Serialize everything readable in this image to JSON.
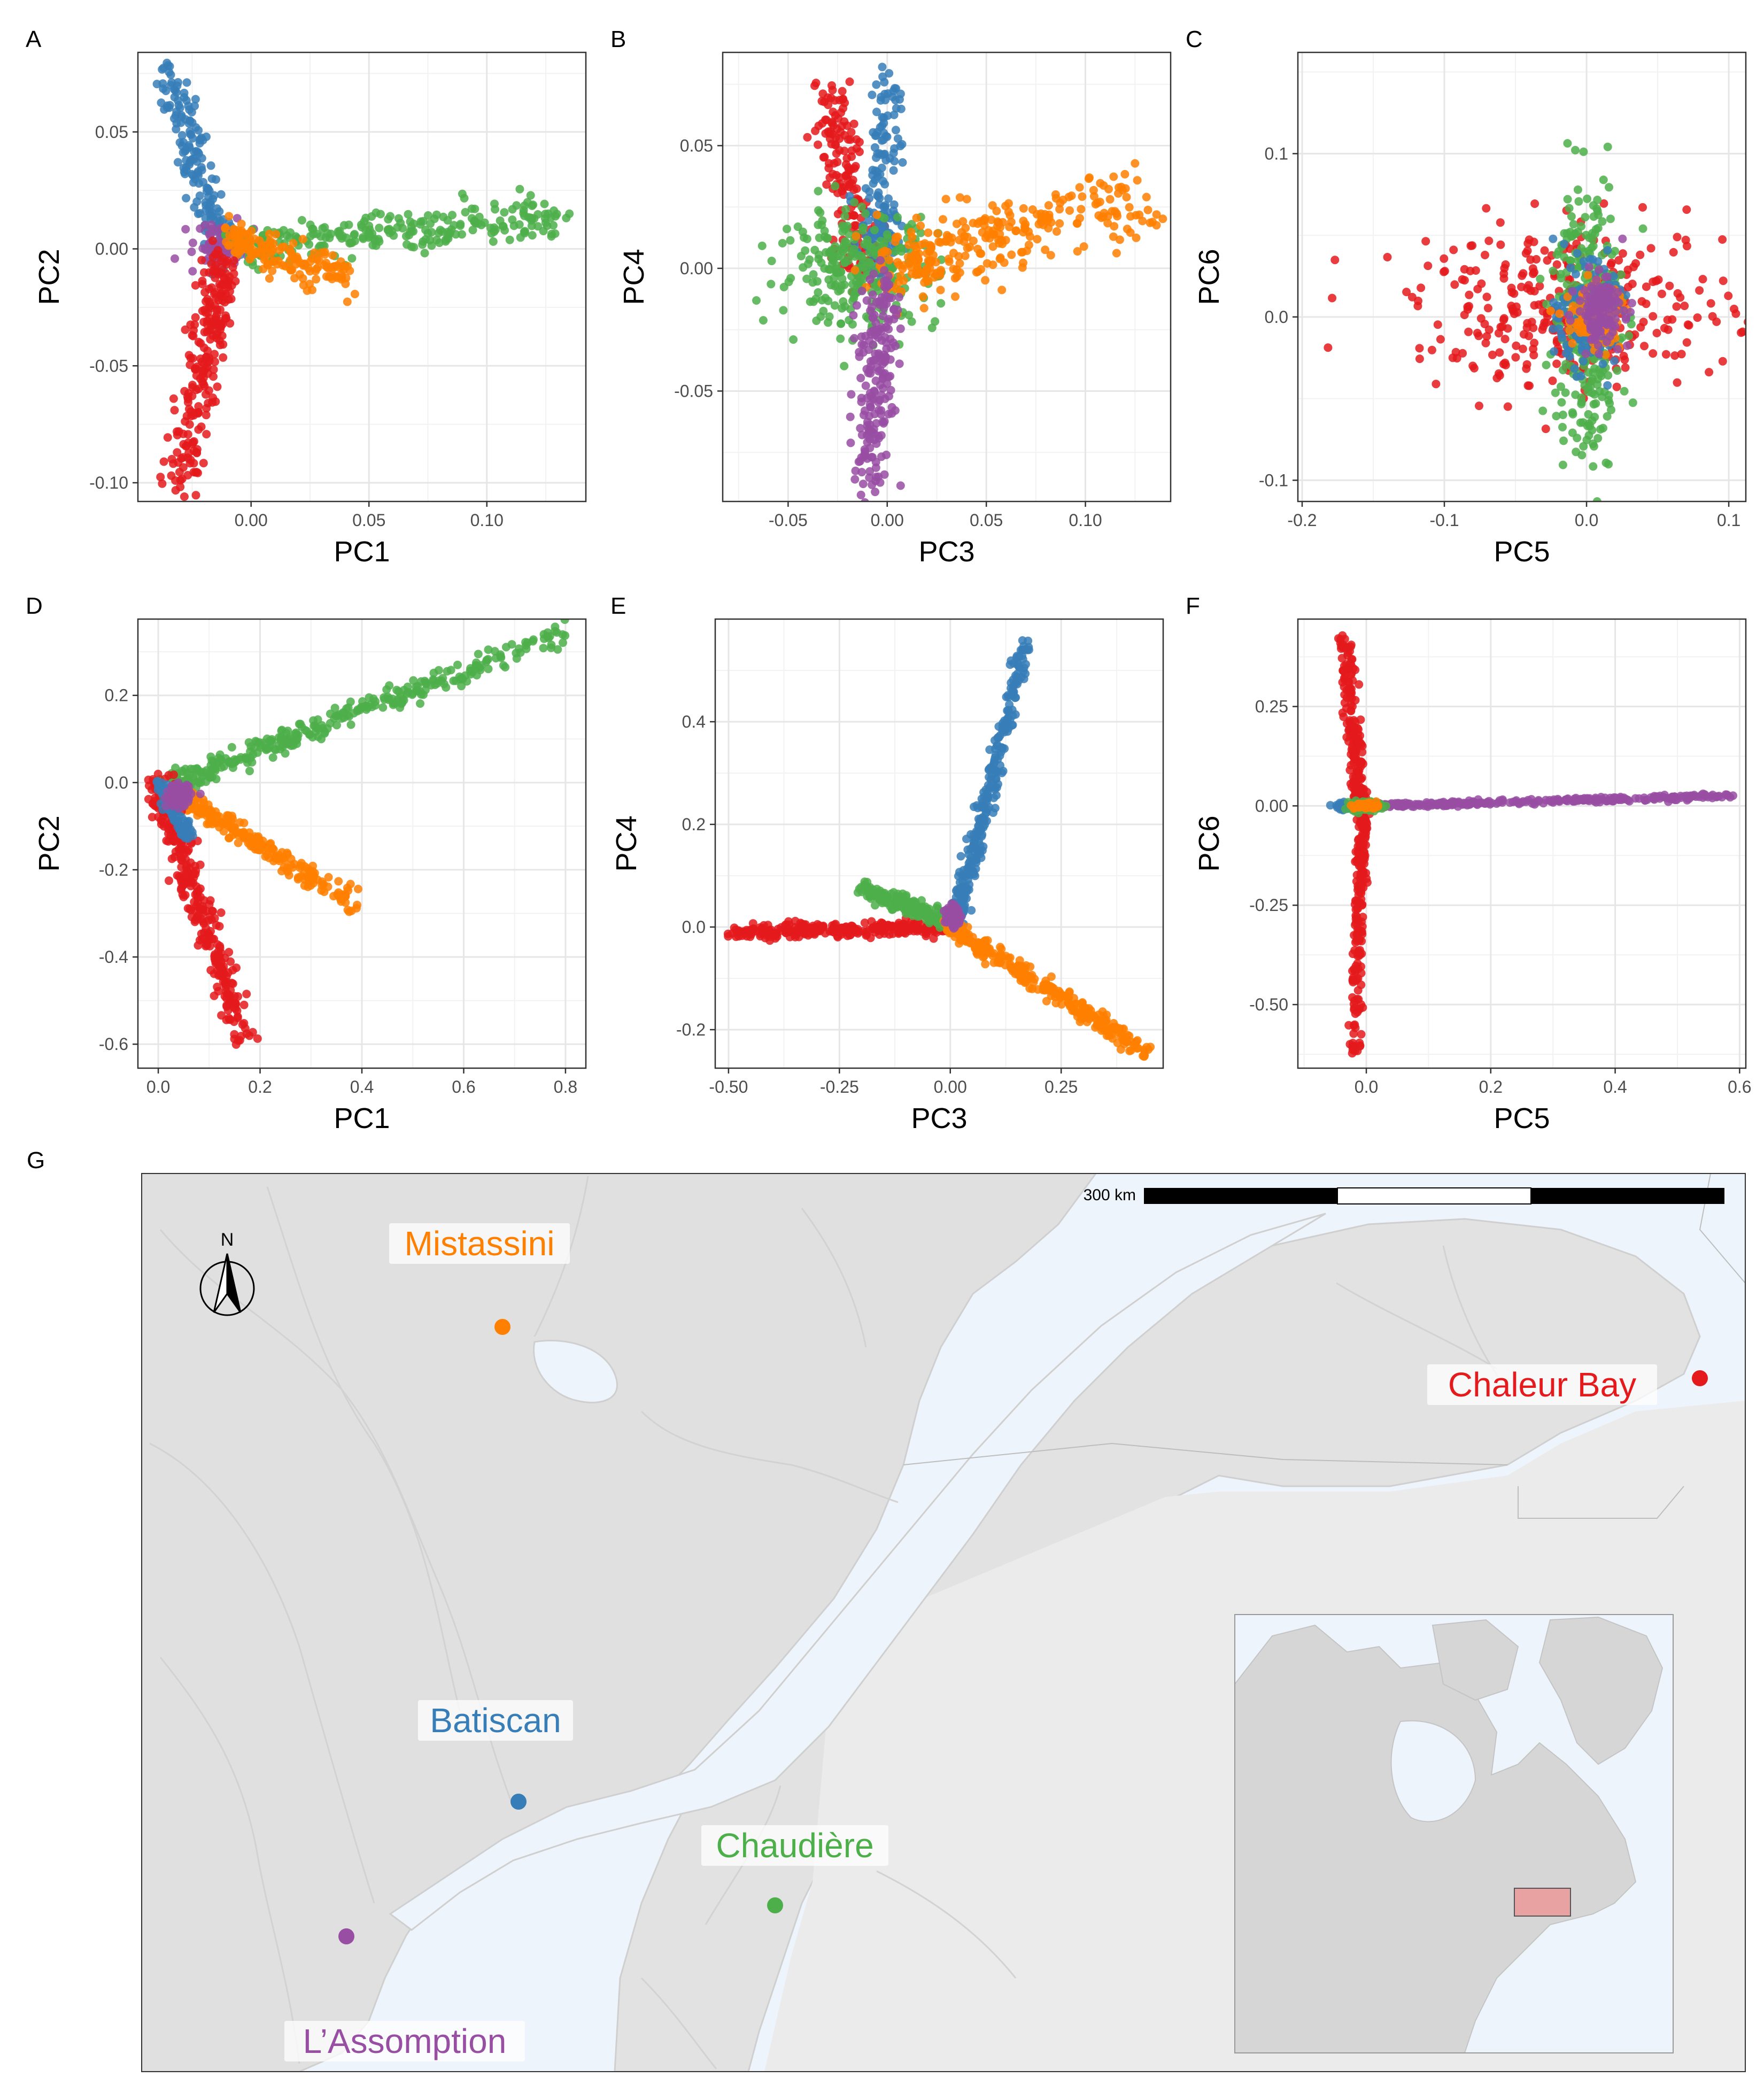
{
  "colors": {
    "chaleur_bay": "#e41a1c",
    "batiscan": "#377eb8",
    "chaudiere": "#4daf4a",
    "lassomption": "#984ea3",
    "mistassini": "#ff7f00",
    "land": "#e0e0e0",
    "land_alt": "#ebebeb",
    "water": "#eef4fb",
    "grid": "#ebebeb"
  },
  "chart_data": [
    {
      "panel": "A",
      "type": "scatter",
      "xlabel": "PC1",
      "ylabel": "PC2",
      "xlim": [
        -0.048,
        0.142
      ],
      "ylim": [
        -0.108,
        0.084
      ],
      "xticks": [
        0.0,
        0.05,
        0.1
      ],
      "xtick_labels": [
        "0.00",
        "0.05",
        "0.10"
      ],
      "yticks": [
        -0.1,
        -0.05,
        0.0,
        0.05
      ],
      "ytick_labels": [
        "-0.10",
        "-0.05",
        "0.00",
        "0.05"
      ],
      "series": [
        {
          "color_key": "batiscan",
          "shape": "arm",
          "from": [
            -0.012,
            0.0
          ],
          "to": [
            -0.035,
            0.075
          ],
          "n": 170,
          "spread": 0.0045
        },
        {
          "color_key": "lassomption",
          "shape": "blob",
          "center": [
            -0.012,
            0.002
          ],
          "sd": [
            0.006,
            0.004
          ],
          "n": 80
        },
        {
          "color_key": "chaudiere",
          "shape": "arm",
          "from": [
            -0.005,
            0.001
          ],
          "to": [
            0.13,
            0.014
          ],
          "n": 260,
          "spread": 0.0045
        },
        {
          "color_key": "mistassini",
          "shape": "arm",
          "from": [
            -0.01,
            0.005
          ],
          "to": [
            0.04,
            -0.012
          ],
          "n": 150,
          "spread": 0.004
        },
        {
          "color_key": "chaleur_bay",
          "shape": "arm",
          "from": [
            -0.012,
            -0.005
          ],
          "to": [
            -0.03,
            -0.1
          ],
          "n": 240,
          "spread": 0.005
        }
      ]
    },
    {
      "panel": "B",
      "type": "scatter",
      "xlabel": "PC3",
      "ylabel": "PC4",
      "xlim": [
        -0.083,
        0.143
      ],
      "ylim": [
        -0.095,
        0.088
      ],
      "xticks": [
        -0.05,
        0.0,
        0.05,
        0.1
      ],
      "xtick_labels": [
        "-0.05",
        "0.00",
        "0.05",
        "0.10"
      ],
      "yticks": [
        -0.05,
        0.0,
        0.05
      ],
      "ytick_labels": [
        "-0.05",
        "0.00",
        "0.05"
      ],
      "series": [
        {
          "color_key": "chaleur_bay",
          "shape": "arm",
          "from": [
            -0.01,
            0.0
          ],
          "to": [
            -0.03,
            0.07
          ],
          "n": 170,
          "spread": 0.006
        },
        {
          "color_key": "batiscan",
          "shape": "arm",
          "from": [
            -0.005,
            0.0
          ],
          "to": [
            0.0,
            0.075
          ],
          "n": 160,
          "spread": 0.005
        },
        {
          "color_key": "chaudiere",
          "shape": "blob",
          "center": [
            -0.015,
            0.0
          ],
          "sd": [
            0.02,
            0.012
          ],
          "n": 260
        },
        {
          "color_key": "mistassini",
          "shape": "arm",
          "from": [
            0.0,
            0.0
          ],
          "to": [
            0.13,
            0.03
          ],
          "n": 280,
          "spread": 0.008
        },
        {
          "color_key": "lassomption",
          "shape": "arm",
          "from": [
            -0.002,
            -0.01
          ],
          "to": [
            -0.01,
            -0.09
          ],
          "n": 200,
          "spread": 0.005
        }
      ]
    },
    {
      "panel": "C",
      "type": "scatter",
      "xlabel": "PC5",
      "ylabel": "PC6",
      "xlim": [
        -0.203,
        0.112
      ],
      "ylim": [
        -0.113,
        0.162
      ],
      "xticks": [
        -0.2,
        -0.1,
        0.0,
        0.1
      ],
      "xtick_labels": [
        "-0.2",
        "-0.1",
        "0.0",
        "0.1"
      ],
      "yticks": [
        -0.1,
        0.0,
        0.1
      ],
      "ytick_labels": [
        "-0.1",
        "0.0",
        "0.1"
      ],
      "series": [
        {
          "color_key": "chaleur_bay",
          "shape": "blob",
          "center": [
            -0.01,
            0.005
          ],
          "sd": [
            0.055,
            0.025
          ],
          "n": 330
        },
        {
          "color_key": "chaudiere",
          "shape": "blob",
          "center": [
            0.0,
            0.0
          ],
          "sd": [
            0.012,
            0.045
          ],
          "n": 300
        },
        {
          "color_key": "batiscan",
          "shape": "blob",
          "center": [
            0.0,
            0.0
          ],
          "sd": [
            0.01,
            0.015
          ],
          "n": 160
        },
        {
          "color_key": "mistassini",
          "shape": "blob",
          "center": [
            0.005,
            0.0
          ],
          "sd": [
            0.01,
            0.01
          ],
          "n": 120
        },
        {
          "color_key": "lassomption",
          "shape": "blob",
          "center": [
            0.01,
            0.005
          ],
          "sd": [
            0.008,
            0.01
          ],
          "n": 140
        }
      ]
    },
    {
      "panel": "D",
      "type": "scatter",
      "xlabel": "PC1",
      "ylabel": "PC2",
      "xlim": [
        -0.04,
        0.84
      ],
      "ylim": [
        -0.655,
        0.375
      ],
      "xticks": [
        0.0,
        0.2,
        0.4,
        0.6,
        0.8
      ],
      "xtick_labels": [
        "0.0",
        "0.2",
        "0.4",
        "0.6",
        "0.8"
      ],
      "yticks": [
        -0.6,
        -0.4,
        -0.2,
        0.0,
        0.2
      ],
      "ytick_labels": [
        "-0.6",
        "-0.4",
        "-0.2",
        "0.0",
        "0.2"
      ],
      "series": [
        {
          "color_key": "chaudiere",
          "shape": "arm",
          "from": [
            0.02,
            -0.005
          ],
          "to": [
            0.8,
            0.345
          ],
          "n": 320,
          "spread": 0.013
        },
        {
          "color_key": "mistassini",
          "shape": "arm",
          "from": [
            0.04,
            -0.03
          ],
          "to": [
            0.39,
            -0.28
          ],
          "n": 240,
          "spread": 0.012
        },
        {
          "color_key": "chaleur_bay",
          "shape": "arm",
          "from": [
            0.0,
            0.0
          ],
          "to": [
            0.17,
            -0.6
          ],
          "n": 320,
          "spread": 0.018
        },
        {
          "color_key": "batiscan",
          "shape": "arm",
          "from": [
            0.0,
            0.0
          ],
          "to": [
            0.06,
            -0.12
          ],
          "n": 90,
          "spread": 0.01
        },
        {
          "color_key": "lassomption",
          "shape": "blob",
          "center": [
            0.04,
            -0.03
          ],
          "sd": [
            0.012,
            0.012
          ],
          "n": 90
        }
      ]
    },
    {
      "panel": "E",
      "type": "scatter",
      "xlabel": "PC3",
      "ylabel": "PC4",
      "xlim": [
        -0.53,
        0.48
      ],
      "ylim": [
        -0.275,
        0.6
      ],
      "xticks": [
        -0.5,
        -0.25,
        0.0,
        0.25
      ],
      "xtick_labels": [
        "-0.50",
        "-0.25",
        "0.00",
        "0.25"
      ],
      "yticks": [
        -0.2,
        0.0,
        0.2,
        0.4
      ],
      "ytick_labels": [
        "-0.2",
        "0.0",
        "0.2",
        "0.4"
      ],
      "series": [
        {
          "color_key": "batiscan",
          "shape": "arm",
          "from": [
            0.01,
            0.0
          ],
          "to": [
            0.175,
            0.565
          ],
          "n": 300,
          "spread": 0.01
        },
        {
          "color_key": "chaleur_bay",
          "shape": "arm",
          "from": [
            0.0,
            0.0
          ],
          "to": [
            -0.5,
            -0.01
          ],
          "n": 300,
          "spread": 0.007
        },
        {
          "color_key": "chaudiere",
          "shape": "arm",
          "from": [
            0.0,
            0.01
          ],
          "to": [
            -0.2,
            0.075
          ],
          "n": 200,
          "spread": 0.008
        },
        {
          "color_key": "mistassini",
          "shape": "arm",
          "from": [
            0.0,
            0.0
          ],
          "to": [
            0.445,
            -0.245
          ],
          "n": 300,
          "spread": 0.009
        },
        {
          "color_key": "lassomption",
          "shape": "blob",
          "center": [
            0.005,
            0.02
          ],
          "sd": [
            0.008,
            0.01
          ],
          "n": 80
        }
      ]
    },
    {
      "panel": "F",
      "type": "scatter",
      "xlabel": "PC5",
      "ylabel": "PC6",
      "xlim": [
        -0.11,
        0.61
      ],
      "ylim": [
        -0.66,
        0.47
      ],
      "xticks": [
        0.0,
        0.2,
        0.4,
        0.6
      ],
      "xtick_labels": [
        "0.0",
        "0.2",
        "0.4",
        "0.6"
      ],
      "yticks": [
        -0.5,
        -0.25,
        0.0,
        0.25
      ],
      "ytick_labels": [
        "-0.50",
        "-0.25",
        "0.00",
        "0.25"
      ],
      "series": [
        {
          "color_key": "chaleur_bay",
          "shape": "arm",
          "from": [
            -0.01,
            0.0
          ],
          "to": [
            -0.035,
            0.43
          ],
          "n": 200,
          "spread": 0.011
        },
        {
          "color_key": "chaleur_bay",
          "shape": "arm",
          "from": [
            -0.005,
            0.0
          ],
          "to": [
            -0.02,
            -0.63
          ],
          "n": 200,
          "spread": 0.009
        },
        {
          "color_key": "lassomption",
          "shape": "arm",
          "from": [
            0.0,
            0.0
          ],
          "to": [
            0.59,
            0.025
          ],
          "n": 300,
          "spread": 0.003
        },
        {
          "color_key": "batiscan",
          "shape": "blob",
          "center": [
            -0.03,
            0.0
          ],
          "sd": [
            0.012,
            0.004
          ],
          "n": 80
        },
        {
          "color_key": "chaudiere",
          "shape": "blob",
          "center": [
            0.0,
            0.0
          ],
          "sd": [
            0.012,
            0.006
          ],
          "n": 100
        },
        {
          "color_key": "mistassini",
          "shape": "blob",
          "center": [
            0.0,
            0.0
          ],
          "sd": [
            0.01,
            0.004
          ],
          "n": 60
        }
      ]
    }
  ],
  "map": {
    "panel": "G",
    "scale_label": "300 km",
    "north_label": "N",
    "sites": [
      {
        "name": "Mistassini",
        "color_key": "mistassini"
      },
      {
        "name": "Chaleur Bay",
        "color_key": "chaleur_bay"
      },
      {
        "name": "Batiscan",
        "color_key": "batiscan"
      },
      {
        "name": "Chaudière",
        "color_key": "chaudiere"
      },
      {
        "name": "L’Assomption",
        "color_key": "lassomption"
      }
    ]
  }
}
